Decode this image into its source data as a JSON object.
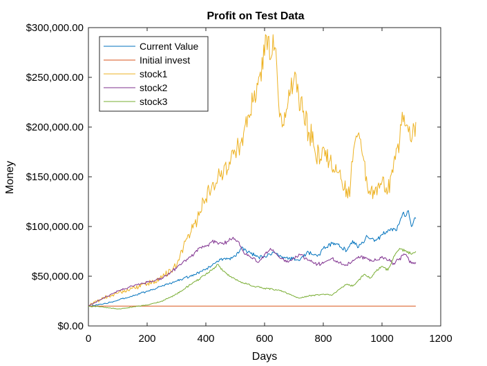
{
  "chart_data": {
    "type": "line",
    "title": "Profit on Test Data",
    "xlabel": "Days",
    "ylabel": "Money",
    "xlim": [
      0,
      1200
    ],
    "ylim": [
      0,
      300000
    ],
    "xticks": [
      0,
      200,
      400,
      600,
      800,
      1000,
      1200
    ],
    "xtick_labels": [
      "0",
      "200",
      "400",
      "600",
      "800",
      "1000",
      "1200"
    ],
    "yticks": [
      0,
      50000,
      100000,
      150000,
      200000,
      250000,
      300000
    ],
    "ytick_labels": [
      "$0.00",
      "$50,000.00",
      "$100,000.00",
      "$150,000.00",
      "$200,000.00",
      "$250,000.00",
      "$300,000.00"
    ],
    "grid": false,
    "legend_position": "top-left",
    "series": [
      {
        "name": "Current Value",
        "color": "#0072BD",
        "points": [
          [
            0,
            20000
          ],
          [
            50,
            22000
          ],
          [
            100,
            26000
          ],
          [
            150,
            30000
          ],
          [
            200,
            35000
          ],
          [
            250,
            40000
          ],
          [
            300,
            45000
          ],
          [
            350,
            50000
          ],
          [
            400,
            57000
          ],
          [
            430,
            63000
          ],
          [
            450,
            67000
          ],
          [
            480,
            68000
          ],
          [
            500,
            70000
          ],
          [
            520,
            78000
          ],
          [
            550,
            74000
          ],
          [
            580,
            69000
          ],
          [
            600,
            70000
          ],
          [
            630,
            74000
          ],
          [
            650,
            70000
          ],
          [
            680,
            67000
          ],
          [
            700,
            68000
          ],
          [
            720,
            66000
          ],
          [
            750,
            74000
          ],
          [
            780,
            70000
          ],
          [
            800,
            78000
          ],
          [
            830,
            83000
          ],
          [
            850,
            82000
          ],
          [
            880,
            76000
          ],
          [
            900,
            86000
          ],
          [
            920,
            79000
          ],
          [
            950,
            90000
          ],
          [
            980,
            86000
          ],
          [
            1000,
            92000
          ],
          [
            1030,
            98000
          ],
          [
            1050,
            96000
          ],
          [
            1070,
            113000
          ],
          [
            1080,
            110000
          ],
          [
            1090,
            116000
          ],
          [
            1100,
            100000
          ],
          [
            1110,
            108000
          ],
          [
            1115,
            108000
          ]
        ]
      },
      {
        "name": "Initial invest",
        "color": "#D95319",
        "points": [
          [
            0,
            20000
          ],
          [
            1115,
            20000
          ]
        ]
      },
      {
        "name": "stock1",
        "color": "#EDB120",
        "points": [
          [
            0,
            20000
          ],
          [
            50,
            28000
          ],
          [
            100,
            33000
          ],
          [
            150,
            38000
          ],
          [
            200,
            42000
          ],
          [
            250,
            48000
          ],
          [
            300,
            60000
          ],
          [
            330,
            85000
          ],
          [
            350,
            95000
          ],
          [
            380,
            115000
          ],
          [
            400,
            128000
          ],
          [
            420,
            140000
          ],
          [
            450,
            150000
          ],
          [
            480,
            165000
          ],
          [
            500,
            175000
          ],
          [
            520,
            185000
          ],
          [
            540,
            200000
          ],
          [
            560,
            225000
          ],
          [
            580,
            250000
          ],
          [
            600,
            272000
          ],
          [
            612,
            291000
          ],
          [
            620,
            268000
          ],
          [
            635,
            280000
          ],
          [
            645,
            240000
          ],
          [
            660,
            200000
          ],
          [
            680,
            225000
          ],
          [
            700,
            248000
          ],
          [
            710,
            235000
          ],
          [
            730,
            215000
          ],
          [
            750,
            195000
          ],
          [
            770,
            178000
          ],
          [
            790,
            168000
          ],
          [
            800,
            180000
          ],
          [
            820,
            165000
          ],
          [
            840,
            155000
          ],
          [
            860,
            148000
          ],
          [
            880,
            138000
          ],
          [
            890,
            130000
          ],
          [
            900,
            165000
          ],
          [
            915,
            190000
          ],
          [
            930,
            178000
          ],
          [
            950,
            140000
          ],
          [
            960,
            132000
          ],
          [
            980,
            140000
          ],
          [
            1000,
            145000
          ],
          [
            1020,
            135000
          ],
          [
            1040,
            165000
          ],
          [
            1060,
            185000
          ],
          [
            1075,
            212000
          ],
          [
            1090,
            195000
          ],
          [
            1100,
            185000
          ],
          [
            1110,
            200000
          ],
          [
            1115,
            205000
          ]
        ]
      },
      {
        "name": "stock2",
        "color": "#7E2F8E",
        "points": [
          [
            0,
            20000
          ],
          [
            50,
            28000
          ],
          [
            100,
            35000
          ],
          [
            150,
            40000
          ],
          [
            200,
            44000
          ],
          [
            250,
            48000
          ],
          [
            300,
            58000
          ],
          [
            350,
            70000
          ],
          [
            380,
            79000
          ],
          [
            400,
            80000
          ],
          [
            430,
            86000
          ],
          [
            460,
            82000
          ],
          [
            490,
            88000
          ],
          [
            510,
            85000
          ],
          [
            530,
            73000
          ],
          [
            550,
            70000
          ],
          [
            580,
            64000
          ],
          [
            600,
            72000
          ],
          [
            620,
            78000
          ],
          [
            650,
            69000
          ],
          [
            680,
            64000
          ],
          [
            700,
            68000
          ],
          [
            720,
            72000
          ],
          [
            750,
            66000
          ],
          [
            780,
            62000
          ],
          [
            800,
            63000
          ],
          [
            830,
            68000
          ],
          [
            850,
            64000
          ],
          [
            880,
            61000
          ],
          [
            900,
            66000
          ],
          [
            920,
            70000
          ],
          [
            950,
            68000
          ],
          [
            970,
            65000
          ],
          [
            1000,
            70000
          ],
          [
            1020,
            66000
          ],
          [
            1040,
            63000
          ],
          [
            1060,
            68000
          ],
          [
            1080,
            72000
          ],
          [
            1100,
            63000
          ],
          [
            1115,
            64000
          ]
        ]
      },
      {
        "name": "stock3",
        "color": "#77AC30",
        "points": [
          [
            0,
            20000
          ],
          [
            50,
            19000
          ],
          [
            100,
            17000
          ],
          [
            150,
            19000
          ],
          [
            200,
            21000
          ],
          [
            250,
            25000
          ],
          [
            300,
            32000
          ],
          [
            350,
            42000
          ],
          [
            400,
            52000
          ],
          [
            420,
            56000
          ],
          [
            440,
            62000
          ],
          [
            460,
            55000
          ],
          [
            480,
            50000
          ],
          [
            500,
            47000
          ],
          [
            530,
            43000
          ],
          [
            560,
            40000
          ],
          [
            600,
            38000
          ],
          [
            650,
            36000
          ],
          [
            700,
            30000
          ],
          [
            720,
            28000
          ],
          [
            750,
            30000
          ],
          [
            800,
            32000
          ],
          [
            830,
            31000
          ],
          [
            860,
            38000
          ],
          [
            880,
            42000
          ],
          [
            900,
            40000
          ],
          [
            920,
            46000
          ],
          [
            940,
            52000
          ],
          [
            960,
            48000
          ],
          [
            980,
            55000
          ],
          [
            1000,
            60000
          ],
          [
            1020,
            56000
          ],
          [
            1040,
            70000
          ],
          [
            1060,
            78000
          ],
          [
            1080,
            76000
          ],
          [
            1100,
            72000
          ],
          [
            1115,
            75000
          ]
        ]
      }
    ]
  }
}
